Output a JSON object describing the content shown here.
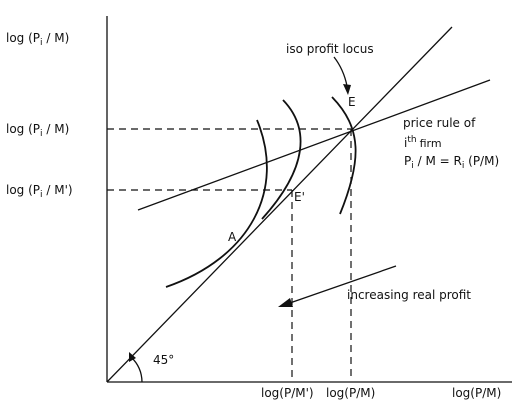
{
  "diagram": {
    "y_axis_label": "log (P",
    "y_axis_sub": "i",
    "y_axis_end": " / M)",
    "y_tick_high": {
      "pre": "log (P",
      "sub": "i",
      "post": " / M)"
    },
    "y_tick_low": {
      "pre": "log (P",
      "sub": "i",
      "post": " / M')"
    },
    "x_axis_label": "log(P/M)",
    "x_tick_left": "log(P/M')",
    "x_tick_right": "log(P/M)",
    "angle_label": "45°",
    "point_E": "E",
    "point_E_prime": "E'",
    "point_A": "A",
    "iso_profit_label": "iso profit locus",
    "price_rule_line1": "price rule of",
    "price_rule_i": "i",
    "price_rule_th": "th",
    "price_rule_firm": "firm",
    "price_rule_eq": {
      "p": "P",
      "i": "i",
      "rest": " / M = R",
      "ri": "i",
      "tail": " (P/M)"
    },
    "increasing_label": "increasing real profit",
    "colors": {
      "ink": "#111111",
      "background": "#ffffff"
    }
  }
}
